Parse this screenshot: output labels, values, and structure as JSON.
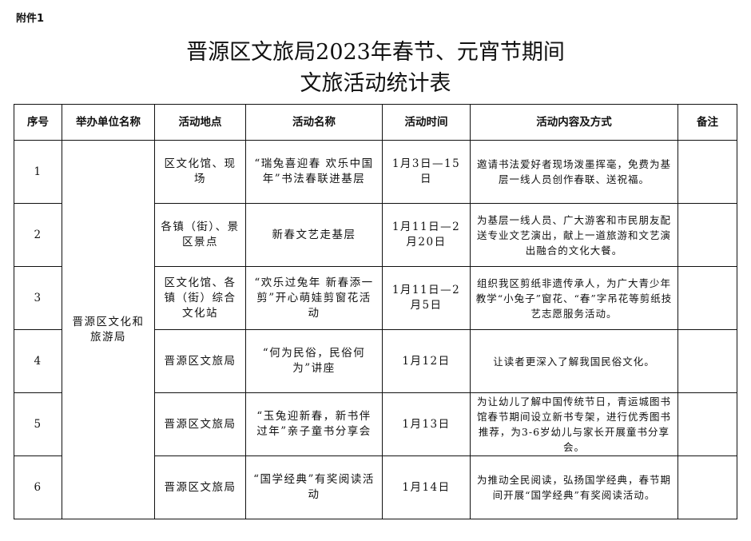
{
  "annex_label": "附件1",
  "title_line1": "晋源区文旅局2023年春节、元宵节期间",
  "title_line2": "文旅活动统计表",
  "headers": [
    "序号",
    "举办单位名称",
    "活动地点",
    "活动名称",
    "活动时间",
    "活动内容及方式",
    "备注"
  ],
  "organizer": "晋源区文化和旅游局",
  "rows": [
    {
      "no": "1",
      "location": "区文化馆、现场",
      "name": "“瑞兔喜迎春 欢乐中国年”书法春联进基层",
      "time": "1月3日—15日",
      "content": "邀请书法爱好者现场泼墨挥毫，免费为基层一线人员创作春联、送祝福。",
      "note": ""
    },
    {
      "no": "2",
      "location": "各镇（街）、景区景点",
      "name": "新春文艺走基层",
      "time": "1月11日—2月20日",
      "content": "为基层一线人员、广大游客和市民朋友配送专业文艺演出，献上一道旅游和文艺演出融合的文化大餐。",
      "note": ""
    },
    {
      "no": "3",
      "location": "区文化馆、各镇（街）综合文化站",
      "name": "“欢乐过兔年 新春添一剪”开心萌娃剪窗花活动",
      "time": "1月11日—2月5日",
      "content": "组织我区剪纸非遗传承人，为广大青少年教学“小兔子”窗花、“春”字吊花等剪纸技艺志愿服务活动。",
      "note": ""
    },
    {
      "no": "4",
      "location": "晋源区文旅局",
      "name": "“何为民俗，民俗何为”讲座",
      "time": "1月12日",
      "content": "让读者更深入了解我国民俗文化。",
      "note": ""
    },
    {
      "no": "5",
      "location": "晋源区文旅局",
      "name": "“玉兔迎新春，新书伴过年”亲子童书分享会",
      "time": "1月13日",
      "content": "为让幼儿了解中国传统节日，青运城图书馆春节期间设立新书专架，进行优秀图书推荐，为3-6岁幼儿与家长开展童书分享会。",
      "note": ""
    },
    {
      "no": "6",
      "location": "晋源区文旅局",
      "name": "“国学经典”有奖阅读活动",
      "time": "1月14日",
      "content": "为推动全民阅读，弘扬国学经典，春节期间开展“国学经典”有奖阅读活动。",
      "note": ""
    }
  ]
}
